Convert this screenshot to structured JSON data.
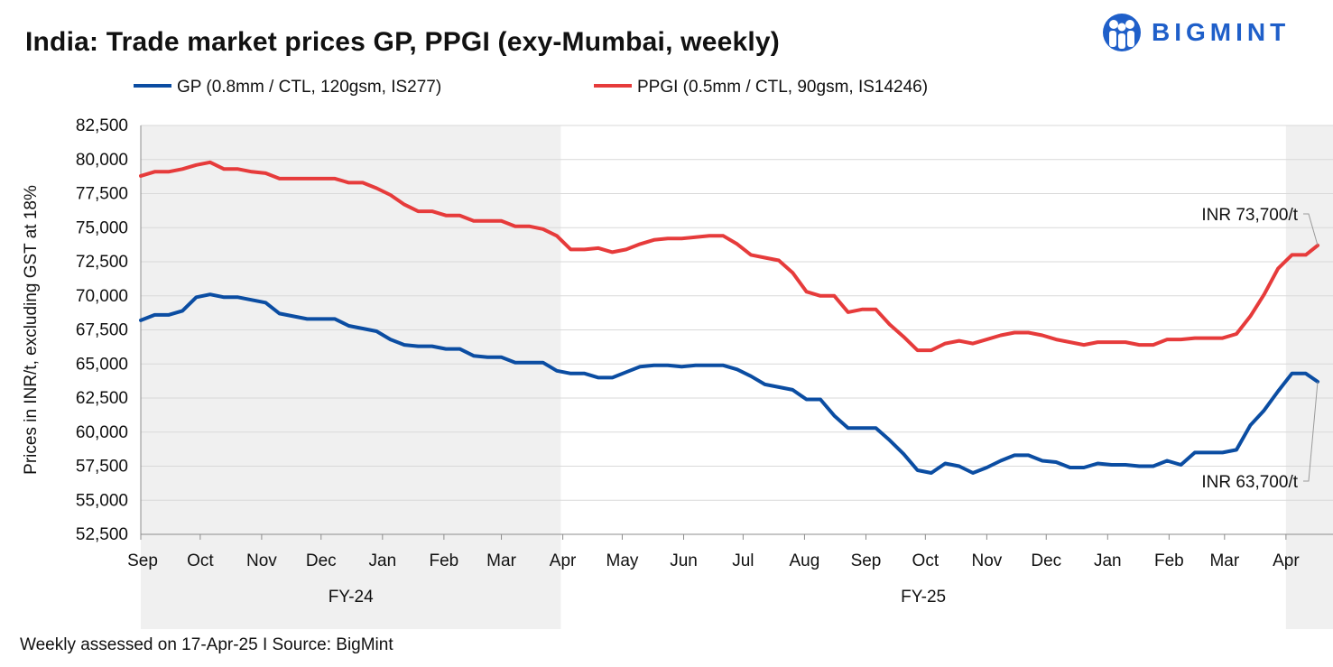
{
  "header": {
    "title": "India: Trade market prices GP, PPGI (exy-Mumbai, weekly)",
    "logo_text": "BIGMINT"
  },
  "footer": {
    "source": "Weekly assessed on 17-Apr-25 I Source: BigMint"
  },
  "colors": {
    "gp": "#0b4da2",
    "ppgi": "#e63b3b",
    "shade": "#f0f0f0",
    "grid": "#d9d9d9",
    "brand": "#1f5fc9"
  },
  "chart_data": {
    "type": "line",
    "title": "India: Trade market prices GP, PPGI (exy-Mumbai, weekly)",
    "ylabel": "Prices in INR/t, excluding GST at 18%",
    "xlabel": "",
    "ylim": [
      52500,
      82500
    ],
    "yticks": [
      52500,
      55000,
      57500,
      60000,
      62500,
      65000,
      67500,
      70000,
      72500,
      75000,
      77500,
      80000,
      82500
    ],
    "ytick_labels": [
      "52,500",
      "55,000",
      "57,500",
      "60,000",
      "62,500",
      "65,000",
      "67,500",
      "70,000",
      "72,500",
      "75,000",
      "77,500",
      "80,000",
      "82,500"
    ],
    "x_months": [
      "Sep",
      "Oct",
      "Nov",
      "Dec",
      "Jan",
      "Feb",
      "Mar",
      "Apr",
      "May",
      "Jun",
      "Jul",
      "Aug",
      "Sep",
      "Oct",
      "Nov",
      "Dec",
      "Jan",
      "Feb",
      "Mar",
      "Apr"
    ],
    "x_start": "2023-09-01",
    "x_end": "2025-04-17",
    "fiscal_years": [
      {
        "label": "FY-24",
        "from": "2023-09-01",
        "to": "2024-03-31",
        "shaded": true
      },
      {
        "label": "FY-25",
        "from": "2024-04-01",
        "to": "2025-03-31",
        "shaded": false
      },
      {
        "label": "",
        "from": "2025-04-01",
        "to": "2025-04-17",
        "shaded": true
      }
    ],
    "grid": true,
    "legend_position": "top",
    "series": [
      {
        "name": "GP (0.8mm / CTL, 120gsm, IS277)",
        "color": "#0b4da2",
        "points": [
          [
            "2023-09-01",
            68200
          ],
          [
            "2023-09-08",
            68600
          ],
          [
            "2023-09-15",
            68600
          ],
          [
            "2023-09-22",
            68900
          ],
          [
            "2023-09-29",
            69900
          ],
          [
            "2023-10-06",
            70100
          ],
          [
            "2023-10-13",
            69900
          ],
          [
            "2023-10-20",
            69900
          ],
          [
            "2023-10-27",
            69700
          ],
          [
            "2023-11-03",
            69500
          ],
          [
            "2023-11-10",
            68700
          ],
          [
            "2023-11-17",
            68500
          ],
          [
            "2023-11-24",
            68300
          ],
          [
            "2023-12-01",
            68300
          ],
          [
            "2023-12-08",
            68300
          ],
          [
            "2023-12-15",
            67800
          ],
          [
            "2023-12-22",
            67600
          ],
          [
            "2023-12-29",
            67400
          ],
          [
            "2024-01-05",
            66800
          ],
          [
            "2024-01-12",
            66400
          ],
          [
            "2024-01-19",
            66300
          ],
          [
            "2024-01-26",
            66300
          ],
          [
            "2024-02-02",
            66100
          ],
          [
            "2024-02-09",
            66100
          ],
          [
            "2024-02-16",
            65600
          ],
          [
            "2024-02-23",
            65500
          ],
          [
            "2024-03-01",
            65500
          ],
          [
            "2024-03-08",
            65100
          ],
          [
            "2024-03-15",
            65100
          ],
          [
            "2024-03-22",
            65100
          ],
          [
            "2024-03-29",
            64500
          ],
          [
            "2024-04-05",
            64300
          ],
          [
            "2024-04-12",
            64300
          ],
          [
            "2024-04-19",
            64000
          ],
          [
            "2024-04-26",
            64000
          ],
          [
            "2024-05-03",
            64400
          ],
          [
            "2024-05-10",
            64800
          ],
          [
            "2024-05-17",
            64900
          ],
          [
            "2024-05-24",
            64900
          ],
          [
            "2024-05-31",
            64800
          ],
          [
            "2024-06-07",
            64900
          ],
          [
            "2024-06-14",
            64900
          ],
          [
            "2024-06-21",
            64900
          ],
          [
            "2024-06-28",
            64600
          ],
          [
            "2024-07-05",
            64100
          ],
          [
            "2024-07-12",
            63500
          ],
          [
            "2024-07-19",
            63300
          ],
          [
            "2024-07-26",
            63100
          ],
          [
            "2024-08-02",
            62400
          ],
          [
            "2024-08-09",
            62400
          ],
          [
            "2024-08-16",
            61200
          ],
          [
            "2024-08-23",
            60300
          ],
          [
            "2024-08-30",
            60300
          ],
          [
            "2024-09-06",
            60300
          ],
          [
            "2024-09-13",
            59400
          ],
          [
            "2024-09-20",
            58400
          ],
          [
            "2024-09-27",
            57200
          ],
          [
            "2024-10-04",
            57000
          ],
          [
            "2024-10-11",
            57700
          ],
          [
            "2024-10-18",
            57500
          ],
          [
            "2024-10-25",
            57000
          ],
          [
            "2024-11-01",
            57400
          ],
          [
            "2024-11-08",
            57900
          ],
          [
            "2024-11-15",
            58300
          ],
          [
            "2024-11-22",
            58300
          ],
          [
            "2024-11-29",
            57900
          ],
          [
            "2024-12-06",
            57800
          ],
          [
            "2024-12-13",
            57400
          ],
          [
            "2024-12-20",
            57400
          ],
          [
            "2024-12-27",
            57700
          ],
          [
            "2025-01-03",
            57600
          ],
          [
            "2025-01-10",
            57600
          ],
          [
            "2025-01-17",
            57500
          ],
          [
            "2025-01-24",
            57500
          ],
          [
            "2025-01-31",
            57900
          ],
          [
            "2025-02-07",
            57600
          ],
          [
            "2025-02-14",
            58500
          ],
          [
            "2025-02-21",
            58500
          ],
          [
            "2025-02-28",
            58500
          ],
          [
            "2025-03-07",
            58700
          ],
          [
            "2025-03-14",
            60500
          ],
          [
            "2025-03-21",
            61600
          ],
          [
            "2025-03-28",
            63000
          ],
          [
            "2025-04-04",
            64300
          ],
          [
            "2025-04-11",
            64300
          ],
          [
            "2025-04-17",
            63700
          ]
        ]
      },
      {
        "name": "PPGI (0.5mm / CTL, 90gsm, IS14246)",
        "color": "#e63b3b",
        "points": [
          [
            "2023-09-01",
            78800
          ],
          [
            "2023-09-08",
            79100
          ],
          [
            "2023-09-15",
            79100
          ],
          [
            "2023-09-22",
            79300
          ],
          [
            "2023-09-29",
            79600
          ],
          [
            "2023-10-06",
            79800
          ],
          [
            "2023-10-13",
            79300
          ],
          [
            "2023-10-20",
            79300
          ],
          [
            "2023-10-27",
            79100
          ],
          [
            "2023-11-03",
            79000
          ],
          [
            "2023-11-10",
            78600
          ],
          [
            "2023-11-17",
            78600
          ],
          [
            "2023-11-24",
            78600
          ],
          [
            "2023-12-01",
            78600
          ],
          [
            "2023-12-08",
            78600
          ],
          [
            "2023-12-15",
            78300
          ],
          [
            "2023-12-22",
            78300
          ],
          [
            "2023-12-29",
            77900
          ],
          [
            "2024-01-05",
            77400
          ],
          [
            "2024-01-12",
            76700
          ],
          [
            "2024-01-19",
            76200
          ],
          [
            "2024-01-26",
            76200
          ],
          [
            "2024-02-02",
            75900
          ],
          [
            "2024-02-09",
            75900
          ],
          [
            "2024-02-16",
            75500
          ],
          [
            "2024-02-23",
            75500
          ],
          [
            "2024-03-01",
            75500
          ],
          [
            "2024-03-08",
            75100
          ],
          [
            "2024-03-15",
            75100
          ],
          [
            "2024-03-22",
            74900
          ],
          [
            "2024-03-29",
            74400
          ],
          [
            "2024-04-05",
            73400
          ],
          [
            "2024-04-12",
            73400
          ],
          [
            "2024-04-19",
            73500
          ],
          [
            "2024-04-26",
            73200
          ],
          [
            "2024-05-03",
            73400
          ],
          [
            "2024-05-10",
            73800
          ],
          [
            "2024-05-17",
            74100
          ],
          [
            "2024-05-24",
            74200
          ],
          [
            "2024-05-31",
            74200
          ],
          [
            "2024-06-07",
            74300
          ],
          [
            "2024-06-14",
            74400
          ],
          [
            "2024-06-21",
            74400
          ],
          [
            "2024-06-28",
            73800
          ],
          [
            "2024-07-05",
            73000
          ],
          [
            "2024-07-12",
            72800
          ],
          [
            "2024-07-19",
            72600
          ],
          [
            "2024-07-26",
            71700
          ],
          [
            "2024-08-02",
            70300
          ],
          [
            "2024-08-09",
            70000
          ],
          [
            "2024-08-16",
            70000
          ],
          [
            "2024-08-23",
            68800
          ],
          [
            "2024-08-30",
            69000
          ],
          [
            "2024-09-06",
            69000
          ],
          [
            "2024-09-13",
            67900
          ],
          [
            "2024-09-20",
            67000
          ],
          [
            "2024-09-27",
            66000
          ],
          [
            "2024-10-04",
            66000
          ],
          [
            "2024-10-11",
            66500
          ],
          [
            "2024-10-18",
            66700
          ],
          [
            "2024-10-25",
            66500
          ],
          [
            "2024-11-01",
            66800
          ],
          [
            "2024-11-08",
            67100
          ],
          [
            "2024-11-15",
            67300
          ],
          [
            "2024-11-22",
            67300
          ],
          [
            "2024-11-29",
            67100
          ],
          [
            "2024-12-06",
            66800
          ],
          [
            "2024-12-13",
            66600
          ],
          [
            "2024-12-20",
            66400
          ],
          [
            "2024-12-27",
            66600
          ],
          [
            "2025-01-03",
            66600
          ],
          [
            "2025-01-10",
            66600
          ],
          [
            "2025-01-17",
            66400
          ],
          [
            "2025-01-24",
            66400
          ],
          [
            "2025-01-31",
            66800
          ],
          [
            "2025-02-07",
            66800
          ],
          [
            "2025-02-14",
            66900
          ],
          [
            "2025-02-21",
            66900
          ],
          [
            "2025-02-28",
            66900
          ],
          [
            "2025-03-07",
            67200
          ],
          [
            "2025-03-14",
            68500
          ],
          [
            "2025-03-21",
            70100
          ],
          [
            "2025-03-28",
            72000
          ],
          [
            "2025-04-04",
            73000
          ],
          [
            "2025-04-11",
            73000
          ],
          [
            "2025-04-17",
            73700
          ]
        ]
      }
    ],
    "annotations": [
      {
        "text": "INR 73,700/t",
        "series": "PPGI (0.5mm / CTL, 90gsm, IS14246)",
        "x": "2025-04-17",
        "y": 73700
      },
      {
        "text": "INR 63,700/t",
        "series": "GP (0.8mm / CTL, 120gsm, IS277)",
        "x": "2025-04-17",
        "y": 63700
      }
    ]
  }
}
